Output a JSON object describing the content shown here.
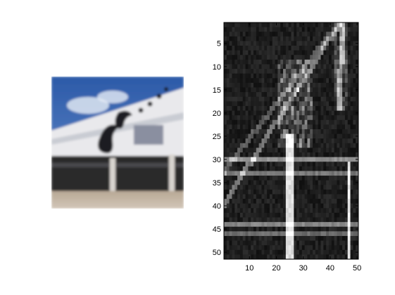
{
  "chart_data": [
    {
      "type": "image",
      "title": "",
      "description_hidden": true
    },
    {
      "type": "heatmap",
      "title": "",
      "xlabel": "",
      "ylabel": "",
      "xlim": [
        0.5,
        50.5
      ],
      "ylim": [
        0.5,
        51.5
      ],
      "y_reversed": true,
      "xticks": [
        10,
        20,
        30,
        40,
        50
      ],
      "yticks": [
        5,
        10,
        15,
        20,
        25,
        30,
        35,
        40,
        45,
        50
      ],
      "colormap": "gray",
      "grid": false
    }
  ]
}
